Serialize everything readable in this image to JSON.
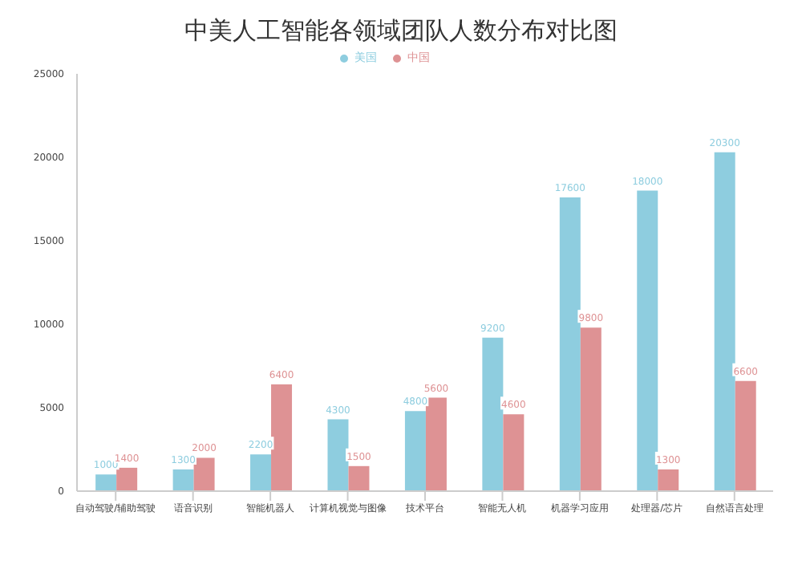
{
  "chart_data": {
    "type": "bar",
    "title": "中美人工智能各领域团队人数分布对比图",
    "categories": [
      "自动驾驶/辅助驾驶",
      "语音识别",
      "智能机器人",
      "计算机视觉与图像",
      "技术平台",
      "智能无人机",
      "机器学习应用",
      "处理器/芯片",
      "自然语言处理"
    ],
    "series": [
      {
        "name": "美国",
        "color": "#8ecddf",
        "values": [
          1000,
          1300,
          2200,
          4300,
          4800,
          9200,
          17600,
          18000,
          20300
        ]
      },
      {
        "name": "中国",
        "color": "#de9294",
        "values": [
          1400,
          2000,
          6400,
          1500,
          5600,
          4600,
          9800,
          1300,
          6600
        ]
      }
    ],
    "ylim": [
      0,
      25000
    ],
    "yticks": [
      0,
      5000,
      10000,
      15000,
      20000,
      25000
    ],
    "grid": false,
    "legend": "top",
    "data_labels": true
  }
}
